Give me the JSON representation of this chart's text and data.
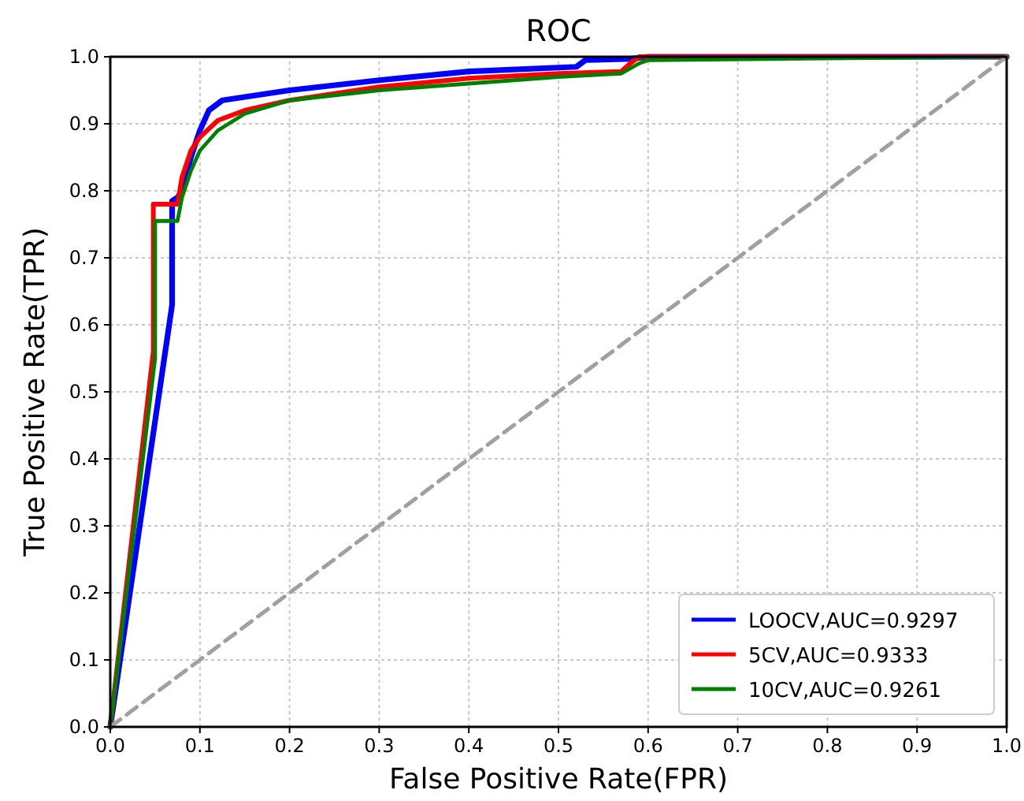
{
  "chart_data": {
    "type": "line",
    "title": "ROC",
    "xlabel": "False Positive Rate(FPR)",
    "ylabel": "True Positive Rate(TPR)",
    "xlim": [
      0,
      1
    ],
    "ylim": [
      0,
      1
    ],
    "xticks": [
      {
        "value": 0,
        "label": "0.0"
      },
      0.1,
      0.2,
      0.3,
      0.4,
      0.5,
      0.6,
      0.7,
      0.8,
      0.9,
      {
        "value": 1,
        "label": "1.0"
      }
    ],
    "yticks": [
      {
        "value": 0,
        "label": "0.0"
      },
      0.1,
      0.2,
      0.3,
      0.4,
      0.5,
      0.6,
      0.7,
      0.8,
      0.9,
      {
        "value": 1,
        "label": "1.0"
      }
    ],
    "grid": true,
    "legend": "bottom right",
    "marker": "none",
    "series": [
      {
        "name": "LOOCV,AUC=0.9297",
        "color": "#0000ff",
        "x": [
          0,
          0.069,
          0.069,
          0.075,
          0.08,
          0.09,
          0.1,
          0.11,
          0.125,
          0.15,
          0.2,
          0.3,
          0.4,
          0.52,
          0.53,
          0.58,
          0.6,
          1
        ],
        "values": [
          0,
          0.63,
          0.785,
          0.79,
          0.8,
          0.85,
          0.89,
          0.92,
          0.935,
          0.94,
          0.95,
          0.965,
          0.978,
          0.985,
          0.995,
          0.997,
          1,
          1
        ]
      },
      {
        "name": "5CV,AUC=0.9333",
        "color": "#ff0000",
        "x": [
          0,
          0.048,
          0.048,
          0.075,
          0.08,
          0.09,
          0.1,
          0.12,
          0.15,
          0.2,
          0.3,
          0.4,
          0.5,
          0.57,
          0.58,
          0.59,
          1
        ],
        "values": [
          0,
          0.56,
          0.78,
          0.78,
          0.82,
          0.86,
          0.88,
          0.905,
          0.92,
          0.935,
          0.955,
          0.968,
          0.975,
          0.978,
          0.99,
          1,
          1
        ]
      },
      {
        "name": "10CV,AUC=0.9261",
        "color": "#008000",
        "x": [
          0,
          0.05,
          0.05,
          0.075,
          0.08,
          0.09,
          0.1,
          0.12,
          0.15,
          0.2,
          0.3,
          0.4,
          0.5,
          0.57,
          0.59,
          0.6,
          1
        ],
        "values": [
          0,
          0.55,
          0.755,
          0.755,
          0.79,
          0.83,
          0.86,
          0.89,
          0.915,
          0.935,
          0.95,
          0.96,
          0.97,
          0.975,
          0.99,
          0.995,
          1
        ]
      },
      {
        "color": "#a0a0a0",
        "line_style": "dashed",
        "x": [
          0,
          1
        ],
        "values": [
          0,
          1
        ]
      }
    ]
  }
}
